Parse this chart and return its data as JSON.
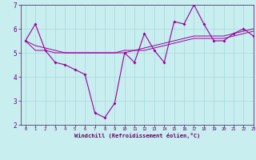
{
  "xlabel": "Windchill (Refroidissement éolien,°C)",
  "bg_color": "#c8eef0",
  "line_color": "#990099",
  "grid_color": "#a8d8d8",
  "axis_color": "#660066",
  "xlim": [
    -0.5,
    23
  ],
  "ylim": [
    2,
    7
  ],
  "yticks": [
    2,
    3,
    4,
    5,
    6,
    7
  ],
  "xticks": [
    0,
    1,
    2,
    3,
    4,
    5,
    6,
    7,
    8,
    9,
    10,
    11,
    12,
    13,
    14,
    15,
    16,
    17,
    18,
    19,
    20,
    21,
    22,
    23
  ],
  "series": [
    [
      5.5,
      6.2,
      5.1,
      4.6,
      4.5,
      4.3,
      4.1,
      2.5,
      2.3,
      2.9,
      5.0,
      4.6,
      5.8,
      5.1,
      4.6,
      6.3,
      6.2,
      7.0,
      6.2,
      5.5,
      5.5,
      5.8,
      6.0,
      5.7
    ],
    [
      5.5,
      5.1,
      5.1,
      5.0,
      5.0,
      5.0,
      5.0,
      5.0,
      5.0,
      5.0,
      5.1,
      5.1,
      5.1,
      5.2,
      5.3,
      5.4,
      5.5,
      5.6,
      5.6,
      5.6,
      5.6,
      5.7,
      5.8,
      5.9
    ],
    [
      5.5,
      5.3,
      5.2,
      5.1,
      5.0,
      5.0,
      5.0,
      5.0,
      5.0,
      5.0,
      5.0,
      5.1,
      5.2,
      5.3,
      5.4,
      5.5,
      5.6,
      5.7,
      5.7,
      5.7,
      5.7,
      5.8,
      5.9,
      6.0
    ]
  ]
}
